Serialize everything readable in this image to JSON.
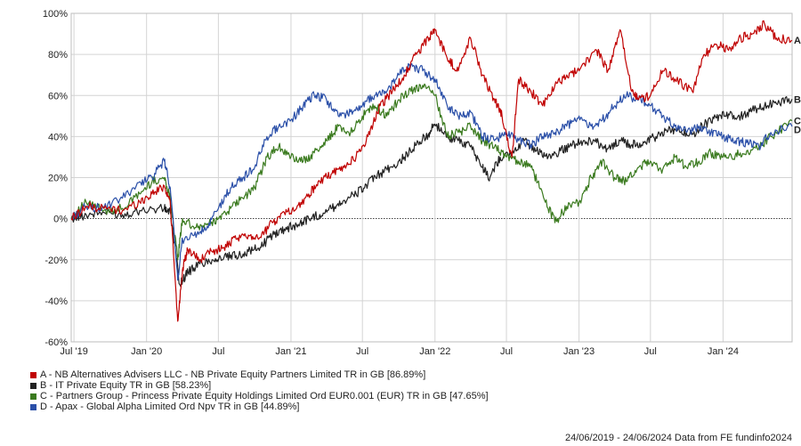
{
  "chart_data": {
    "type": "line",
    "y_unit": "%",
    "ylim": [
      -60,
      100
    ],
    "y_ticks": [
      -60,
      -40,
      -20,
      0,
      20,
      40,
      60,
      80,
      100
    ],
    "y_tick_labels": [
      "-60%",
      "-40%",
      "-20%",
      "0%",
      "20%",
      "40%",
      "60%",
      "80%",
      "100%"
    ],
    "x_range": [
      "2019-06-24",
      "2024-06-24"
    ],
    "x_ticks": [
      {
        "date": "2019-07-01",
        "label": "Jul '19"
      },
      {
        "date": "2020-01-01",
        "label": "Jan '20"
      },
      {
        "date": "2020-07-01",
        "label": "Jul"
      },
      {
        "date": "2021-01-01",
        "label": "Jan '21"
      },
      {
        "date": "2021-07-01",
        "label": "Jul"
      },
      {
        "date": "2022-01-01",
        "label": "Jan '22"
      },
      {
        "date": "2022-07-01",
        "label": "Jul"
      },
      {
        "date": "2023-01-01",
        "label": "Jan '23"
      },
      {
        "date": "2023-07-01",
        "label": "Jul"
      },
      {
        "date": "2024-01-01",
        "label": "Jan '24"
      }
    ],
    "grid": true,
    "zero_line": "dotted",
    "series": [
      {
        "key": "A",
        "name": "A - NB Alternatives Advisers LLC - NB Private Equity Partners Limited TR in GB [86.89%]",
        "color": "#c00000",
        "points": [
          [
            "2019-06-24",
            0
          ],
          [
            "2019-08-01",
            6
          ],
          [
            "2019-09-15",
            5
          ],
          [
            "2019-11-01",
            4
          ],
          [
            "2019-12-15",
            8
          ],
          [
            "2020-01-15",
            12
          ],
          [
            "2020-02-15",
            16
          ],
          [
            "2020-03-01",
            8
          ],
          [
            "2020-03-20",
            -50
          ],
          [
            "2020-04-01",
            -25
          ],
          [
            "2020-04-15",
            -15
          ],
          [
            "2020-05-15",
            -20
          ],
          [
            "2020-06-15",
            -16
          ],
          [
            "2020-07-15",
            -14
          ],
          [
            "2020-08-15",
            -10
          ],
          [
            "2020-09-15",
            -8
          ],
          [
            "2020-10-15",
            -9
          ],
          [
            "2020-11-15",
            -2
          ],
          [
            "2020-12-15",
            3
          ],
          [
            "2021-01-15",
            5
          ],
          [
            "2021-02-15",
            12
          ],
          [
            "2021-03-15",
            18
          ],
          [
            "2021-04-15",
            22
          ],
          [
            "2021-05-15",
            25
          ],
          [
            "2021-06-15",
            30
          ],
          [
            "2021-07-15",
            40
          ],
          [
            "2021-08-15",
            55
          ],
          [
            "2021-09-15",
            62
          ],
          [
            "2021-10-15",
            70
          ],
          [
            "2021-11-15",
            80
          ],
          [
            "2021-12-15",
            88
          ],
          [
            "2022-01-01",
            92
          ],
          [
            "2022-02-01",
            78
          ],
          [
            "2022-03-01",
            72
          ],
          [
            "2022-04-01",
            88
          ],
          [
            "2022-05-01",
            70
          ],
          [
            "2022-06-01",
            58
          ],
          [
            "2022-06-20",
            50
          ],
          [
            "2022-07-15",
            30
          ],
          [
            "2022-08-01",
            68
          ],
          [
            "2022-09-01",
            62
          ],
          [
            "2022-10-01",
            55
          ],
          [
            "2022-11-01",
            65
          ],
          [
            "2022-12-01",
            70
          ],
          [
            "2023-01-01",
            72
          ],
          [
            "2023-02-15",
            82
          ],
          [
            "2023-03-15",
            72
          ],
          [
            "2023-04-15",
            92
          ],
          [
            "2023-05-15",
            62
          ],
          [
            "2023-06-01",
            58
          ],
          [
            "2023-07-01",
            60
          ],
          [
            "2023-08-01",
            72
          ],
          [
            "2023-09-01",
            68
          ],
          [
            "2023-10-15",
            62
          ],
          [
            "2023-11-15",
            80
          ],
          [
            "2023-12-15",
            85
          ],
          [
            "2024-01-15",
            82
          ],
          [
            "2024-02-15",
            88
          ],
          [
            "2024-03-15",
            90
          ],
          [
            "2024-04-15",
            95
          ],
          [
            "2024-05-15",
            88
          ],
          [
            "2024-06-24",
            86.89
          ]
        ]
      },
      {
        "key": "B",
        "name": "B - IT Private Equity TR in GB [58.23%]",
        "color": "#222222",
        "points": [
          [
            "2019-06-24",
            0
          ],
          [
            "2019-08-01",
            2
          ],
          [
            "2019-09-15",
            3
          ],
          [
            "2019-11-01",
            2
          ],
          [
            "2019-12-15",
            4
          ],
          [
            "2020-02-15",
            5
          ],
          [
            "2020-03-01",
            3
          ],
          [
            "2020-03-25",
            -32
          ],
          [
            "2020-04-15",
            -26
          ],
          [
            "2020-05-15",
            -22
          ],
          [
            "2020-06-15",
            -20
          ],
          [
            "2020-07-15",
            -19
          ],
          [
            "2020-08-15",
            -18
          ],
          [
            "2020-09-15",
            -16
          ],
          [
            "2020-10-15",
            -14
          ],
          [
            "2020-11-15",
            -8
          ],
          [
            "2020-12-15",
            -5
          ],
          [
            "2021-01-15",
            -3
          ],
          [
            "2021-02-15",
            0
          ],
          [
            "2021-03-15",
            2
          ],
          [
            "2021-04-15",
            5
          ],
          [
            "2021-05-15",
            9
          ],
          [
            "2021-06-15",
            12
          ],
          [
            "2021-07-15",
            17
          ],
          [
            "2021-08-15",
            22
          ],
          [
            "2021-09-15",
            25
          ],
          [
            "2021-10-15",
            30
          ],
          [
            "2021-11-15",
            36
          ],
          [
            "2021-12-15",
            41
          ],
          [
            "2022-01-01",
            46
          ],
          [
            "2022-02-01",
            40
          ],
          [
            "2022-03-01",
            38
          ],
          [
            "2022-04-01",
            35
          ],
          [
            "2022-05-01",
            25
          ],
          [
            "2022-05-20",
            20
          ],
          [
            "2022-06-15",
            30
          ],
          [
            "2022-07-15",
            32
          ],
          [
            "2022-08-15",
            38
          ],
          [
            "2022-09-15",
            33
          ],
          [
            "2022-10-15",
            30
          ],
          [
            "2022-11-15",
            33
          ],
          [
            "2022-12-15",
            36
          ],
          [
            "2023-01-15",
            38
          ],
          [
            "2023-02-15",
            37
          ],
          [
            "2023-03-15",
            34
          ],
          [
            "2023-04-15",
            38
          ],
          [
            "2023-05-15",
            36
          ],
          [
            "2023-06-15",
            37
          ],
          [
            "2023-07-15",
            40
          ],
          [
            "2023-08-15",
            43
          ],
          [
            "2023-09-15",
            42
          ],
          [
            "2023-10-15",
            41
          ],
          [
            "2023-11-15",
            46
          ],
          [
            "2023-12-15",
            49
          ],
          [
            "2024-01-15",
            51
          ],
          [
            "2024-02-15",
            50
          ],
          [
            "2024-03-15",
            53
          ],
          [
            "2024-04-15",
            55
          ],
          [
            "2024-05-15",
            56
          ],
          [
            "2024-06-24",
            58.23
          ]
        ]
      },
      {
        "key": "C",
        "name": "C - Partners Group - Princess Private Equity Holdings Limited Ord EUR0.001 (EUR) TR in GB [47.65%]",
        "color": "#3a7a1e",
        "points": [
          [
            "2019-06-24",
            0
          ],
          [
            "2019-08-01",
            8
          ],
          [
            "2019-09-15",
            4
          ],
          [
            "2019-11-01",
            5
          ],
          [
            "2019-12-15",
            12
          ],
          [
            "2020-01-15",
            18
          ],
          [
            "2020-02-15",
            20
          ],
          [
            "2020-03-01",
            10
          ],
          [
            "2020-03-20",
            -20
          ],
          [
            "2020-04-01",
            0
          ],
          [
            "2020-05-01",
            -5
          ],
          [
            "2020-06-01",
            -3
          ],
          [
            "2020-07-01",
            0
          ],
          [
            "2020-08-01",
            5
          ],
          [
            "2020-09-01",
            10
          ],
          [
            "2020-10-01",
            15
          ],
          [
            "2020-11-01",
            30
          ],
          [
            "2020-12-01",
            35
          ],
          [
            "2021-01-01",
            30
          ],
          [
            "2021-02-01",
            28
          ],
          [
            "2021-03-01",
            32
          ],
          [
            "2021-04-01",
            38
          ],
          [
            "2021-05-01",
            45
          ],
          [
            "2021-06-01",
            42
          ],
          [
            "2021-07-01",
            50
          ],
          [
            "2021-08-01",
            55
          ],
          [
            "2021-09-01",
            50
          ],
          [
            "2021-10-01",
            58
          ],
          [
            "2021-11-01",
            62
          ],
          [
            "2021-12-01",
            65
          ],
          [
            "2022-01-01",
            60
          ],
          [
            "2022-02-01",
            40
          ],
          [
            "2022-03-01",
            42
          ],
          [
            "2022-04-01",
            45
          ],
          [
            "2022-05-01",
            38
          ],
          [
            "2022-06-01",
            35
          ],
          [
            "2022-07-01",
            30
          ],
          [
            "2022-08-01",
            28
          ],
          [
            "2022-09-01",
            25
          ],
          [
            "2022-10-01",
            12
          ],
          [
            "2022-11-01",
            -2
          ],
          [
            "2022-12-01",
            6
          ],
          [
            "2023-01-01",
            8
          ],
          [
            "2023-02-01",
            20
          ],
          [
            "2023-03-01",
            28
          ],
          [
            "2023-04-01",
            20
          ],
          [
            "2023-05-01",
            18
          ],
          [
            "2023-06-01",
            25
          ],
          [
            "2023-07-01",
            28
          ],
          [
            "2023-08-01",
            24
          ],
          [
            "2023-09-01",
            30
          ],
          [
            "2023-10-01",
            25
          ],
          [
            "2023-11-01",
            28
          ],
          [
            "2023-12-01",
            32
          ],
          [
            "2024-01-01",
            30
          ],
          [
            "2024-02-01",
            31
          ],
          [
            "2024-03-01",
            33
          ],
          [
            "2024-04-01",
            35
          ],
          [
            "2024-05-01",
            40
          ],
          [
            "2024-06-24",
            47.65
          ]
        ]
      },
      {
        "key": "D",
        "name": "D - Apax - Global Alpha Limited Ord Npv TR in GB [44.89%]",
        "color": "#2a4fa8",
        "points": [
          [
            "2019-06-24",
            0
          ],
          [
            "2019-08-01",
            6
          ],
          [
            "2019-09-15",
            5
          ],
          [
            "2019-11-01",
            10
          ],
          [
            "2019-12-15",
            18
          ],
          [
            "2020-01-15",
            20
          ],
          [
            "2020-02-15",
            28
          ],
          [
            "2020-03-01",
            15
          ],
          [
            "2020-03-20",
            -30
          ],
          [
            "2020-04-01",
            -10
          ],
          [
            "2020-05-01",
            -8
          ],
          [
            "2020-06-01",
            -5
          ],
          [
            "2020-07-01",
            5
          ],
          [
            "2020-08-01",
            15
          ],
          [
            "2020-09-01",
            20
          ],
          [
            "2020-10-01",
            25
          ],
          [
            "2020-11-01",
            40
          ],
          [
            "2020-12-01",
            45
          ],
          [
            "2021-01-01",
            48
          ],
          [
            "2021-02-01",
            55
          ],
          [
            "2021-03-01",
            60
          ],
          [
            "2021-04-01",
            58
          ],
          [
            "2021-05-01",
            50
          ],
          [
            "2021-06-01",
            52
          ],
          [
            "2021-07-01",
            55
          ],
          [
            "2021-08-01",
            60
          ],
          [
            "2021-09-01",
            62
          ],
          [
            "2021-10-01",
            70
          ],
          [
            "2021-11-01",
            75
          ],
          [
            "2021-12-01",
            72
          ],
          [
            "2022-01-01",
            68
          ],
          [
            "2022-02-01",
            55
          ],
          [
            "2022-03-01",
            50
          ],
          [
            "2022-04-01",
            52
          ],
          [
            "2022-05-01",
            40
          ],
          [
            "2022-06-01",
            38
          ],
          [
            "2022-07-01",
            42
          ],
          [
            "2022-08-01",
            38
          ],
          [
            "2022-09-01",
            36
          ],
          [
            "2022-10-01",
            40
          ],
          [
            "2022-11-01",
            42
          ],
          [
            "2022-12-01",
            45
          ],
          [
            "2023-01-01",
            50
          ],
          [
            "2023-02-01",
            45
          ],
          [
            "2023-03-01",
            48
          ],
          [
            "2023-04-01",
            55
          ],
          [
            "2023-05-01",
            60
          ],
          [
            "2023-06-01",
            58
          ],
          [
            "2023-07-01",
            55
          ],
          [
            "2023-08-01",
            50
          ],
          [
            "2023-09-01",
            45
          ],
          [
            "2023-10-01",
            42
          ],
          [
            "2023-11-01",
            45
          ],
          [
            "2023-12-01",
            42
          ],
          [
            "2024-01-01",
            40
          ],
          [
            "2024-02-01",
            38
          ],
          [
            "2024-03-01",
            37
          ],
          [
            "2024-04-01",
            35
          ],
          [
            "2024-05-01",
            42
          ],
          [
            "2024-06-24",
            44.89
          ]
        ]
      }
    ],
    "footer": "24/06/2019 - 24/06/2024 Data from FE fundinfo2024"
  }
}
